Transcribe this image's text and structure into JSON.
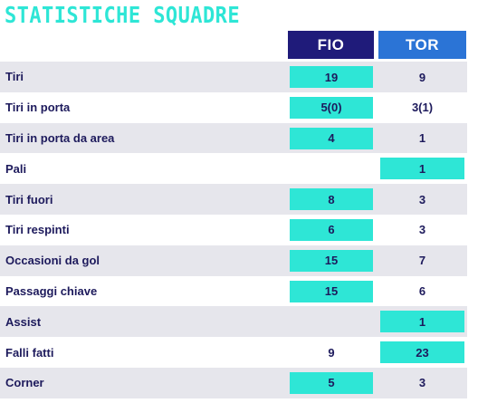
{
  "title": "STATISTICHE SQUADRE",
  "teams": {
    "home": "FIO",
    "away": "TOR"
  },
  "colors": {
    "accent": "#2ee6d6",
    "home": "#1f1b7a",
    "away": "#2b74d6",
    "text": "#1d1a5c",
    "shade": "#e6e6ec"
  },
  "rows": [
    {
      "label": "Tiri",
      "home": "19",
      "away": "9",
      "highlight": "home"
    },
    {
      "label": "Tiri in porta",
      "home": "5(0)",
      "away": "3(1)",
      "highlight": "home"
    },
    {
      "label": "Tiri in porta da area",
      "home": "4",
      "away": "1",
      "highlight": "home"
    },
    {
      "label": "Pali",
      "home": "",
      "away": "1",
      "highlight": "away"
    },
    {
      "label": "Tiri fuori",
      "home": "8",
      "away": "3",
      "highlight": "home"
    },
    {
      "label": "Tiri respinti",
      "home": "6",
      "away": "3",
      "highlight": "home"
    },
    {
      "label": "Occasioni da gol",
      "home": "15",
      "away": "7",
      "highlight": "home"
    },
    {
      "label": "Passaggi chiave",
      "home": "15",
      "away": "6",
      "highlight": "home"
    },
    {
      "label": "Assist",
      "home": "",
      "away": "1",
      "highlight": "away"
    },
    {
      "label": "Falli fatti",
      "home": "9",
      "away": "23",
      "highlight": "away"
    },
    {
      "label": "Corner",
      "home": "5",
      "away": "3",
      "highlight": "home"
    }
  ]
}
